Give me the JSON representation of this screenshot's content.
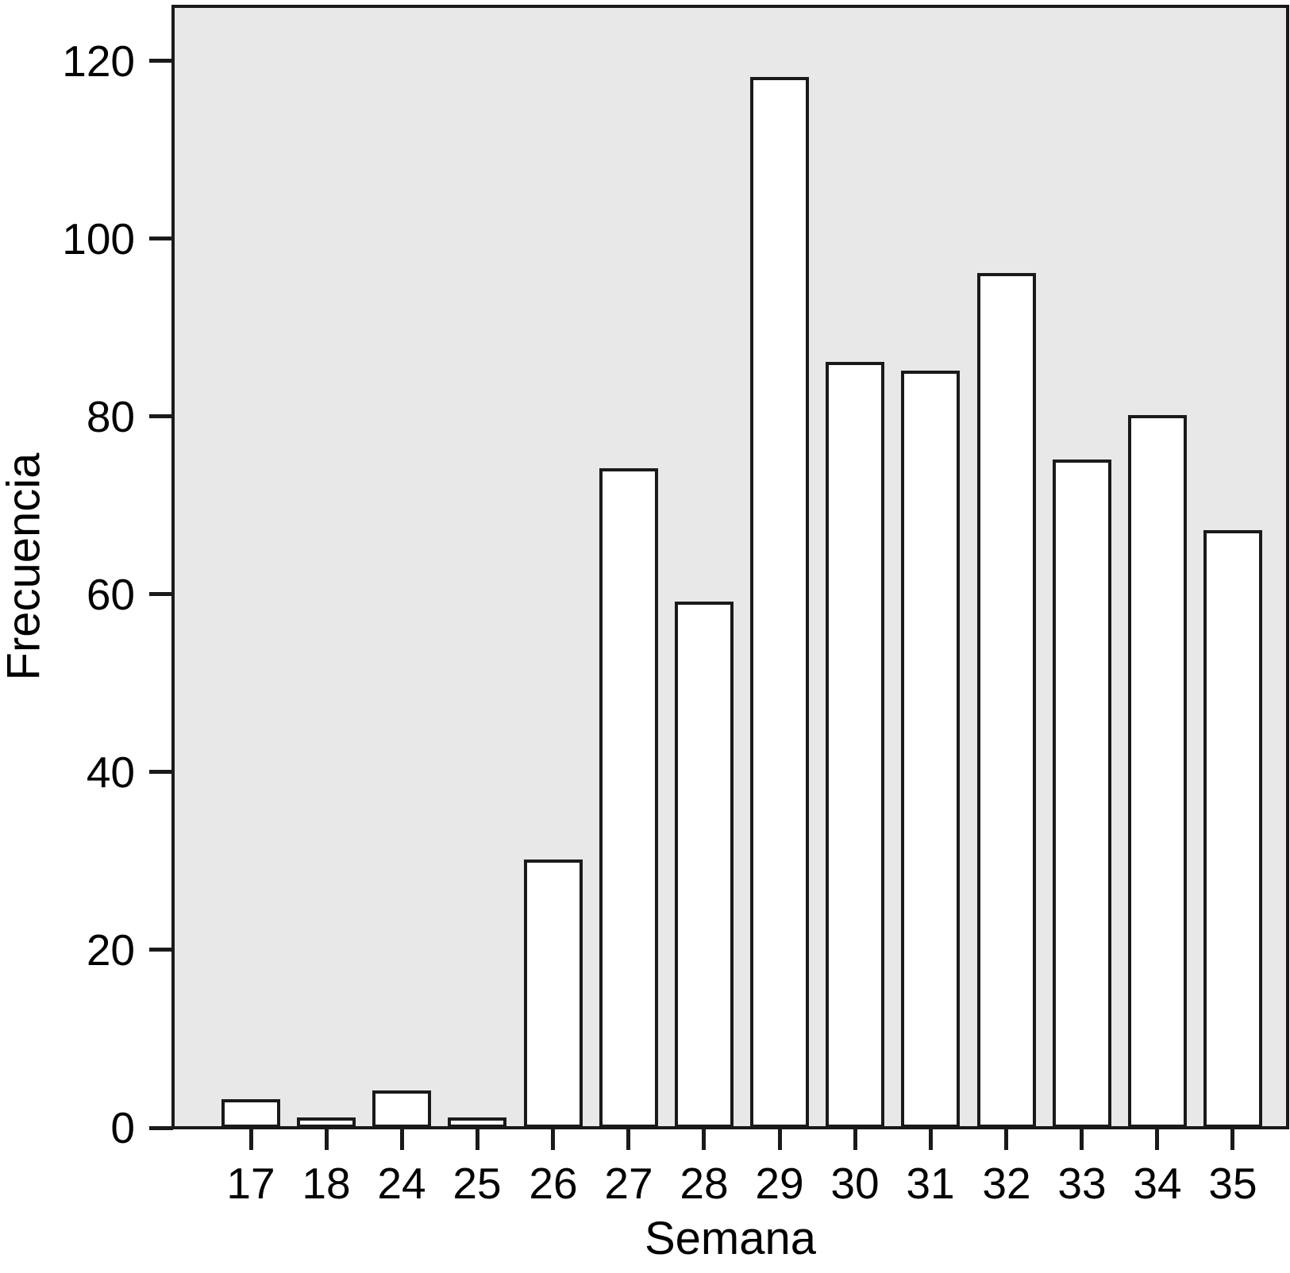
{
  "chart_data": {
    "type": "bar",
    "title": "",
    "xlabel": "Semana",
    "ylabel": "Frecuencia",
    "categories": [
      "17",
      "18",
      "24",
      "25",
      "26",
      "27",
      "28",
      "29",
      "30",
      "31",
      "32",
      "33",
      "34",
      "35"
    ],
    "values": [
      3,
      1,
      4,
      1,
      30,
      74,
      59,
      118,
      86,
      85,
      96,
      75,
      80,
      67
    ],
    "yticks": [
      0,
      20,
      40,
      60,
      80,
      100,
      120
    ],
    "ylim": [
      0,
      126
    ],
    "grid": false,
    "legend_position": "none",
    "colors": {
      "bar_fill": "#ffffff",
      "bar_stroke": "#1a1a1a",
      "plot_background": "#e8e8e8",
      "page_background": "#ffffff",
      "axis_line": "#1a1a1a",
      "text": "#000000"
    }
  }
}
